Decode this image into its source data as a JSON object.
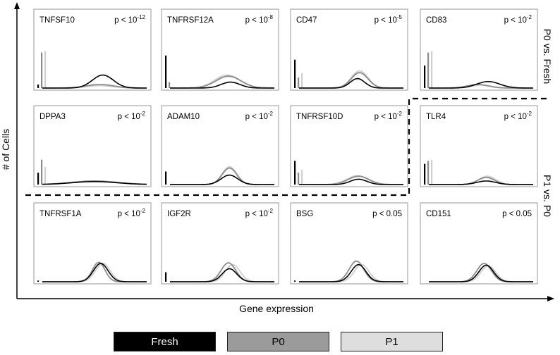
{
  "chart_data": {
    "type": "area",
    "xlabel": "Gene expression",
    "ylabel": "# of Cells",
    "series": [
      {
        "name": "Fresh",
        "color": "#000000"
      },
      {
        "name": "P0",
        "color": "#8c8c8c"
      },
      {
        "name": "P1",
        "color": "#cfcfcf"
      }
    ],
    "group_labels": [
      "P0 vs. Fresh",
      "P1 vs. P0"
    ],
    "panels": [
      {
        "gene": "TNFSF10",
        "p": "p < 10",
        "exp": "-12",
        "spikes": [
          0.06,
          0.6,
          0.62
        ],
        "curves": [
          {
            "mean": 0.58,
            "sd": 0.1,
            "height": 0.22
          },
          {
            "mean": 0.55,
            "sd": 0.13,
            "height": 0.06
          },
          {
            "mean": 0.55,
            "sd": 0.13,
            "height": 0.04
          }
        ]
      },
      {
        "gene": "TNFRSF12A",
        "p": "p < 10",
        "exp": "-8",
        "spikes": [
          0.55,
          0.1,
          0.0
        ],
        "curves": [
          {
            "mean": 0.58,
            "sd": 0.09,
            "height": 0.1
          },
          {
            "mean": 0.56,
            "sd": 0.12,
            "height": 0.2
          },
          {
            "mean": 0.55,
            "sd": 0.12,
            "height": 0.22
          }
        ]
      },
      {
        "gene": "CD47",
        "p": "p < 10",
        "exp": "-5",
        "spikes": [
          0.48,
          0.18,
          0.25
        ],
        "curves": [
          {
            "mean": 0.56,
            "sd": 0.07,
            "height": 0.16
          },
          {
            "mean": 0.58,
            "sd": 0.08,
            "height": 0.26
          },
          {
            "mean": 0.58,
            "sd": 0.08,
            "height": 0.29
          }
        ]
      },
      {
        "gene": "CD83",
        "p": "p < 10",
        "exp": "-2",
        "spikes": [
          0.38,
          0.6,
          0.62
        ],
        "curves": [
          {
            "mean": 0.57,
            "sd": 0.11,
            "height": 0.11
          },
          {
            "mean": 0.47,
            "sd": 0.1,
            "height": 0.06
          },
          {
            "mean": 0.5,
            "sd": 0.1,
            "height": 0.05
          }
        ]
      },
      {
        "gene": "DPPA3",
        "p": "p < 10",
        "exp": "-2",
        "spikes": [
          0.2,
          0.42,
          0.3
        ],
        "curves": [
          {
            "mean": 0.5,
            "sd": 0.22,
            "height": 0.05
          },
          {
            "mean": 0.5,
            "sd": 0.22,
            "height": 0.06
          },
          {
            "mean": 0.5,
            "sd": 0.22,
            "height": 0.06
          }
        ]
      },
      {
        "gene": "ADAM10",
        "p": "p < 10",
        "exp": "-2",
        "spikes": [
          0.22,
          0.0,
          0.0
        ],
        "curves": [
          {
            "mean": 0.57,
            "sd": 0.08,
            "height": 0.16
          },
          {
            "mean": 0.57,
            "sd": 0.07,
            "height": 0.28
          },
          {
            "mean": 0.57,
            "sd": 0.07,
            "height": 0.3
          }
        ]
      },
      {
        "gene": "TNFRSF10D",
        "p": "p < 10",
        "exp": "-2",
        "spikes": [
          0.4,
          0.2,
          0.25
        ],
        "curves": [
          {
            "mean": 0.57,
            "sd": 0.08,
            "height": 0.09
          },
          {
            "mean": 0.57,
            "sd": 0.1,
            "height": 0.14
          },
          {
            "mean": 0.56,
            "sd": 0.1,
            "height": 0.15
          }
        ]
      },
      {
        "gene": "TLR4",
        "p": "p < 10",
        "exp": "-2",
        "spikes": [
          0.35,
          0.4,
          0.42
        ],
        "curves": [
          {
            "mean": 0.55,
            "sd": 0.09,
            "height": 0.06
          },
          {
            "mean": 0.55,
            "sd": 0.08,
            "height": 0.12
          },
          {
            "mean": 0.56,
            "sd": 0.08,
            "height": 0.14
          }
        ]
      },
      {
        "gene": "TNFRSF1A",
        "p": "p < 10",
        "exp": "-2",
        "spikes": [
          0.02,
          0.0,
          0.0
        ],
        "curves": [
          {
            "mean": 0.56,
            "sd": 0.07,
            "height": 0.31
          },
          {
            "mean": 0.54,
            "sd": 0.06,
            "height": 0.33
          },
          {
            "mean": 0.58,
            "sd": 0.07,
            "height": 0.31
          }
        ]
      },
      {
        "gene": "IGF2R",
        "p": "p < 10",
        "exp": "-2",
        "spikes": [
          0.16,
          0.0,
          0.0
        ],
        "curves": [
          {
            "mean": 0.57,
            "sd": 0.07,
            "height": 0.22
          },
          {
            "mean": 0.56,
            "sd": 0.07,
            "height": 0.32
          },
          {
            "mean": 0.6,
            "sd": 0.07,
            "height": 0.29
          }
        ]
      },
      {
        "gene": "BSG",
        "p": "p < 0.05",
        "exp": "",
        "spikes": [
          0.02,
          0.0,
          0.0
        ],
        "curves": [
          {
            "mean": 0.57,
            "sd": 0.07,
            "height": 0.29
          },
          {
            "mean": 0.55,
            "sd": 0.07,
            "height": 0.35
          },
          {
            "mean": 0.6,
            "sd": 0.07,
            "height": 0.29
          }
        ]
      },
      {
        "gene": "CD151",
        "p": "p < 0.05",
        "exp": "",
        "spikes": [
          0.0,
          0.0,
          0.0
        ],
        "curves": [
          {
            "mean": 0.55,
            "sd": 0.07,
            "height": 0.28
          },
          {
            "mean": 0.53,
            "sd": 0.07,
            "height": 0.31
          },
          {
            "mean": 0.57,
            "sd": 0.07,
            "height": 0.27
          }
        ]
      }
    ]
  }
}
